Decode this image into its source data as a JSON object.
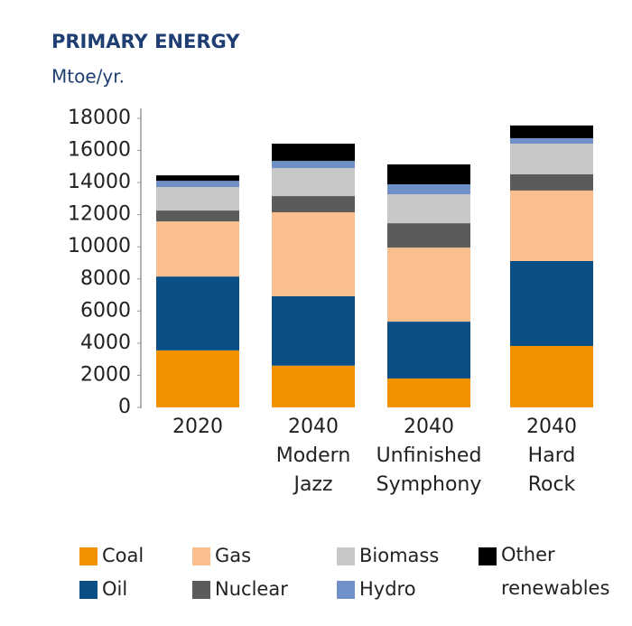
{
  "chart_data": {
    "type": "stacked_bar",
    "title": "PRIMARY ENERGY",
    "y_label": "Mtoe/yr.",
    "categories": [
      [
        "2020"
      ],
      [
        "2040",
        "Modern",
        "Jazz"
      ],
      [
        "2040",
        "Unfinished",
        "Symphony"
      ],
      [
        "2040",
        "Hard",
        "Rock"
      ]
    ],
    "series": [
      {
        "name": "Coal",
        "color": "#f39200",
        "values": [
          3550,
          2600,
          1800,
          3825
        ]
      },
      {
        "name": "Oil",
        "color": "#0a4f86",
        "values": [
          4600,
          4320,
          3540,
          5290
        ]
      },
      {
        "name": "Gas",
        "color": "#f9bf8f",
        "values": [
          3430,
          5230,
          4610,
          4390
        ]
      },
      {
        "name": "Nuclear",
        "color": "#5b5b5b",
        "values": [
          680,
          1010,
          1520,
          1010
        ]
      },
      {
        "name": "Biomass",
        "color": "#c8c8c8",
        "values": [
          1460,
          1740,
          1800,
          1910
        ]
      },
      {
        "name": "Hydro",
        "color": "#7090c8",
        "values": [
          390,
          450,
          620,
          340
        ]
      },
      {
        "name": "Other renewables",
        "color": "#000000",
        "values": [
          340,
          1070,
          1240,
          790
        ]
      }
    ],
    "ylim": [
      0,
      18000
    ],
    "yticks": [
      0,
      2000,
      4000,
      6000,
      8000,
      10000,
      12000,
      14000,
      16000,
      18000
    ]
  }
}
